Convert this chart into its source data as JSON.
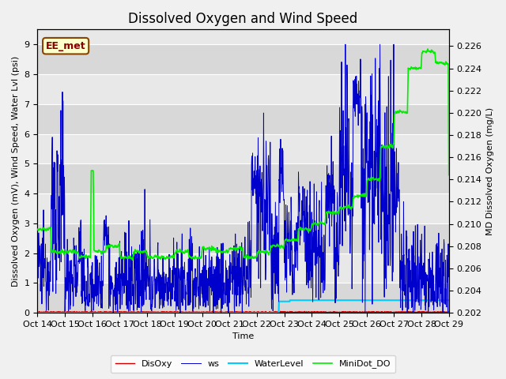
{
  "title": "Dissolved Oxygen and Wind Speed",
  "xlabel": "Time",
  "ylabel_left": "Dissolved Oxygen (mV), Wind Speed, Water Lvl (psi)",
  "ylabel_right": "MD Dissolved Oxygen (mg/L)",
  "ylim_left": [
    0.0,
    9.5
  ],
  "ylim_right": [
    0.202,
    0.2275
  ],
  "legend_box_label": "EE_met",
  "legend_entries": [
    "DisOxy",
    "ws",
    "WaterLevel",
    "MiniDot_DO"
  ],
  "legend_colors": [
    "#ff0000",
    "#0000cc",
    "#00ccff",
    "#00cc00"
  ],
  "background_color": "#f0f0f0",
  "plot_bg_color": "#e8e8e8",
  "grid_color": "#ffffff",
  "x_tick_labels": [
    "Oct 14",
    "Oct 15",
    "Oct 16",
    "Oct 17",
    "Oct 18",
    "Oct 19",
    "Oct 20",
    "Oct 21",
    "Oct 22",
    "Oct 23",
    "Oct 24",
    "Oct 25",
    "Oct 26",
    "Oct 27",
    "Oct 28",
    "Oct 29"
  ],
  "n_points": 1500,
  "ws_color": "#0000cc",
  "disoxy_color": "#cc0000",
  "waterlevel_color": "#00ccff",
  "minidot_color": "#00ee00",
  "title_fontsize": 12,
  "axis_fontsize": 8,
  "tick_fontsize": 8,
  "yticks_left": [
    0.0,
    1.0,
    2.0,
    3.0,
    4.0,
    5.0,
    6.0,
    7.0,
    8.0,
    9.0
  ],
  "yticks_right": [
    0.202,
    0.204,
    0.206,
    0.208,
    0.21,
    0.212,
    0.214,
    0.216,
    0.218,
    0.22,
    0.222,
    0.224,
    0.226
  ],
  "n_days": 15
}
